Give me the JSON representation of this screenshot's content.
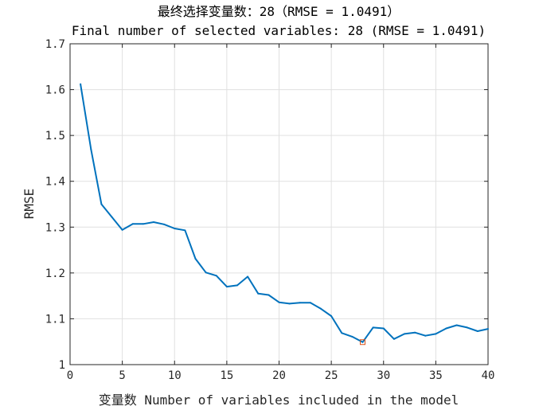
{
  "chart_data": {
    "type": "line",
    "title": "最终选择变量数：28（RMSE = 1.0491）",
    "subtitle": "Final number of selected variables: 28  (RMSE = 1.0491)",
    "xlabel": "变量数 Number of variables included in the model",
    "ylabel": "RMSE",
    "xlim": [
      0,
      40
    ],
    "ylim": [
      1,
      1.7
    ],
    "xticks": [
      "0",
      "5",
      "10",
      "15",
      "20",
      "25",
      "30",
      "35",
      "40"
    ],
    "yticks": [
      "1",
      "1.1",
      "1.2",
      "1.3",
      "1.4",
      "1.5",
      "1.6",
      "1.7"
    ],
    "grid": true,
    "series": [
      {
        "color": "#0072bd",
        "x": [
          1,
          2,
          3,
          4,
          5,
          6,
          7,
          8,
          9,
          10,
          11,
          12,
          13,
          14,
          15,
          16,
          17,
          18,
          19,
          20,
          21,
          22,
          23,
          24,
          25,
          26,
          27,
          28,
          29,
          30,
          31,
          32,
          33,
          34,
          35,
          36,
          37,
          38,
          39,
          40
        ],
        "values": [
          1.612,
          1.47,
          1.35,
          1.322,
          1.294,
          1.307,
          1.307,
          1.311,
          1.306,
          1.297,
          1.293,
          1.231,
          1.201,
          1.194,
          1.17,
          1.173,
          1.192,
          1.155,
          1.152,
          1.136,
          1.133,
          1.135,
          1.135,
          1.122,
          1.106,
          1.069,
          1.061,
          1.049,
          1.081,
          1.079,
          1.056,
          1.067,
          1.07,
          1.063,
          1.067,
          1.079,
          1.086,
          1.081,
          1.073,
          1.078
        ]
      }
    ],
    "marker": {
      "x": 28,
      "y": 1.0491,
      "color": "#d95319"
    }
  }
}
